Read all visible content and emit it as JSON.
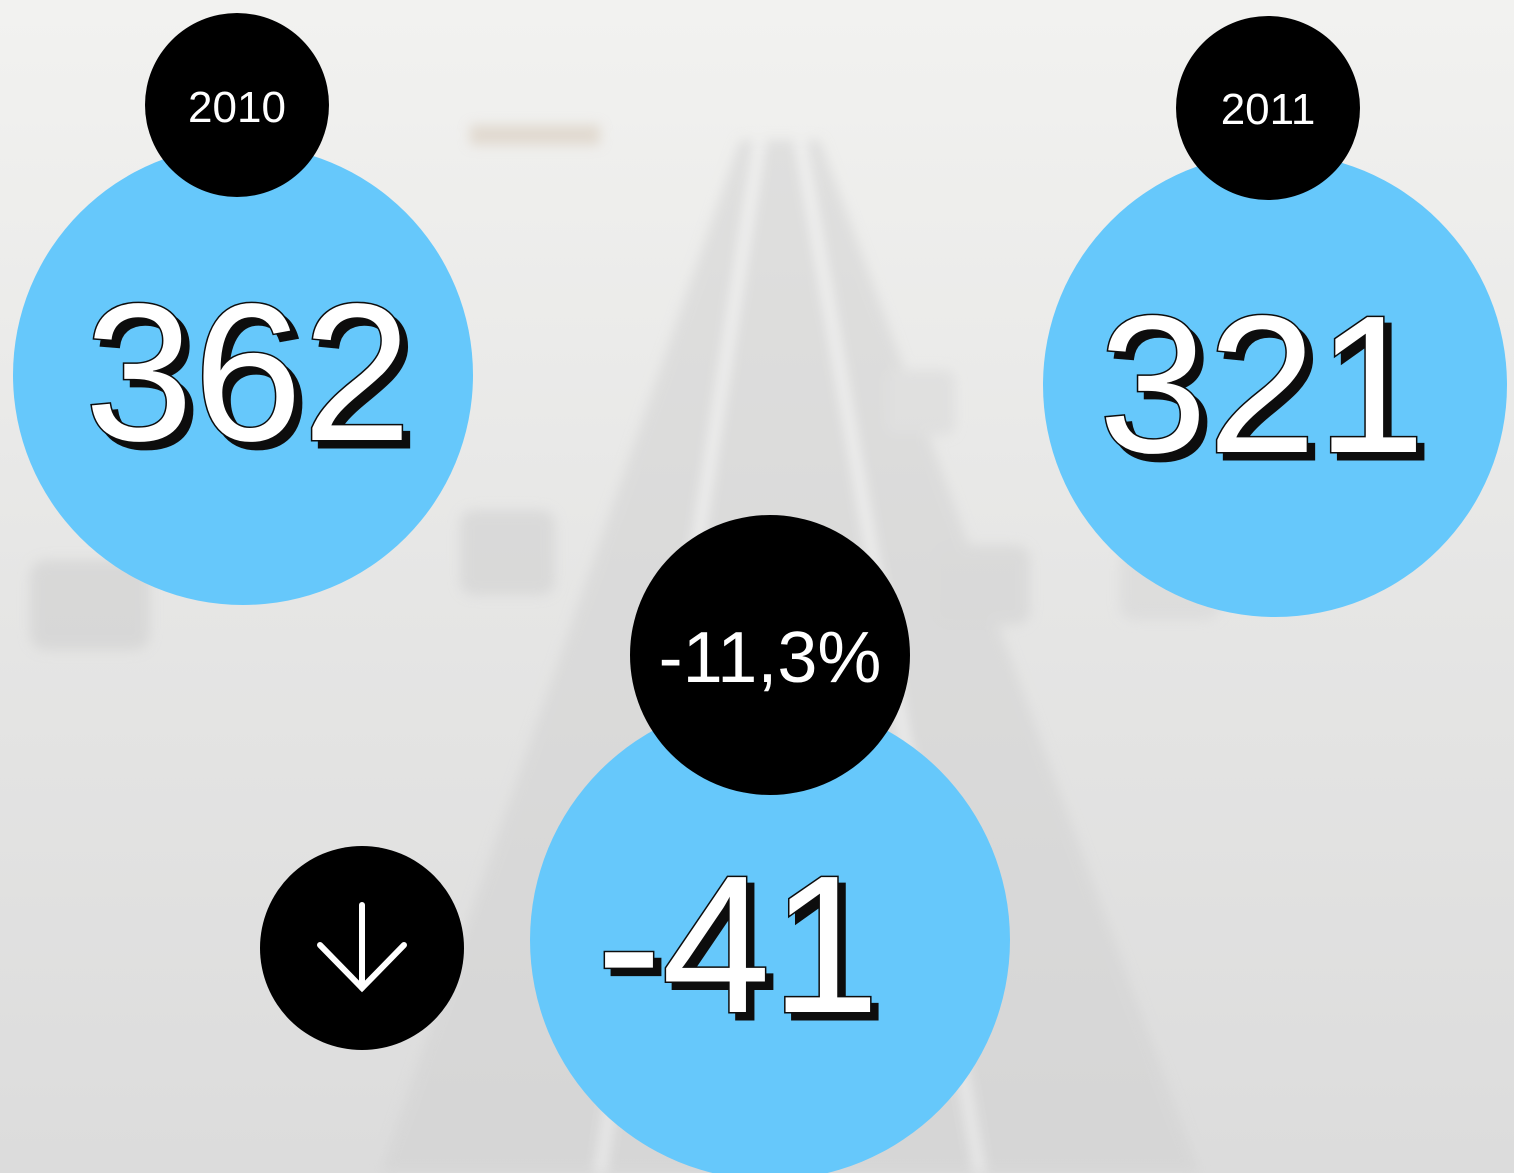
{
  "stats": [
    {
      "label": "2010",
      "value": "362"
    },
    {
      "label": "2011",
      "value": "321"
    }
  ],
  "change": {
    "percent": "-11,3%",
    "value": "-41"
  }
}
